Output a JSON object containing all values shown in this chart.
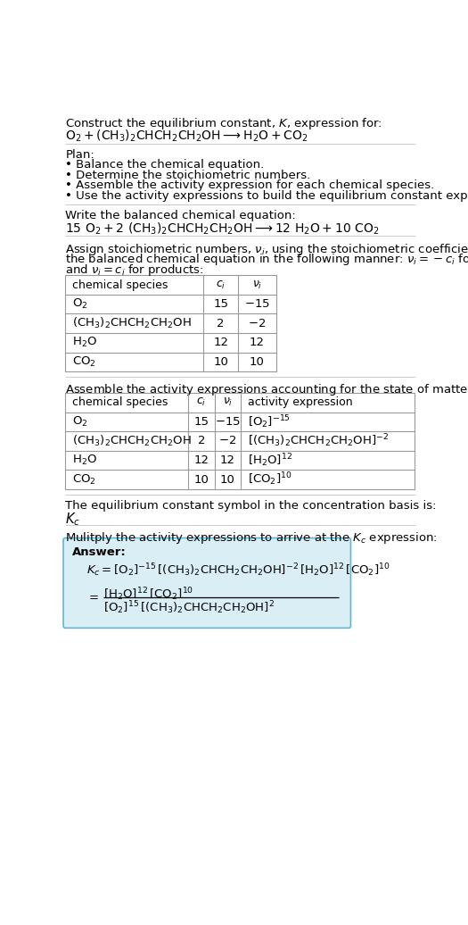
{
  "title_line1": "Construct the equilibrium constant, $K$, expression for:",
  "title_line2_plain": "O",
  "plan_header": "Plan:",
  "plan_bullets": [
    "• Balance the chemical equation.",
    "• Determine the stoichiometric numbers.",
    "• Assemble the activity expression for each chemical species.",
    "• Use the activity expressions to build the equilibrium constant expression."
  ],
  "balanced_eq_header": "Write the balanced chemical equation:",
  "stoich_intro_lines": [
    "Assign stoichiometric numbers, $\\nu_i$, using the stoichiometric coefficients, $c_i$, from",
    "the balanced chemical equation in the following manner: $\\nu_i = -c_i$ for reactants",
    "and $\\nu_i = c_i$ for products:"
  ],
  "table1_headers": [
    "chemical species",
    "$c_i$",
    "$\\nu_i$"
  ],
  "table1_rows": [
    [
      "$\\mathrm{O_2}$",
      "15",
      "$-15$"
    ],
    [
      "$\\mathrm{(CH_3)_2CHCH_2CH_2OH}$",
      "2",
      "$-2$"
    ],
    [
      "$\\mathrm{H_2O}$",
      "12",
      "12"
    ],
    [
      "$\\mathrm{CO_2}$",
      "10",
      "10"
    ]
  ],
  "activity_intro": "Assemble the activity expressions accounting for the state of matter and $\\nu_i$:",
  "table2_headers": [
    "chemical species",
    "$c_i$",
    "$\\nu_i$",
    "activity expression"
  ],
  "table2_rows": [
    [
      "$\\mathrm{O_2}$",
      "15",
      "$-15$",
      "$[\\mathrm{O_2}]^{-15}$"
    ],
    [
      "$\\mathrm{(CH_3)_2CHCH_2CH_2OH}$",
      "2",
      "$-2$",
      "$[(\\mathrm{CH_3})_2\\mathrm{CHCH_2CH_2OH}]^{-2}$"
    ],
    [
      "$\\mathrm{H_2O}$",
      "12",
      "12",
      "$[\\mathrm{H_2O}]^{12}$"
    ],
    [
      "$\\mathrm{CO_2}$",
      "10",
      "10",
      "$[\\mathrm{CO_2}]^{10}$"
    ]
  ],
  "kc_intro": "The equilibrium constant symbol in the concentration basis is:",
  "kc_symbol": "$K_c$",
  "multiply_intro": "Mulitply the activity expressions to arrive at the $K_c$ expression:",
  "answer_label": "Answer:",
  "answer_line1": "$K_c = [\\mathrm{O_2}]^{-15}\\, [(\\mathrm{CH_3})_2\\mathrm{CHCH_2CH_2OH}]^{-2}\\, [\\mathrm{H_2O}]^{12}\\, [\\mathrm{CO_2}]^{10}$",
  "answer_num": "$[\\mathrm{H_2O}]^{12}\\, [\\mathrm{CO_2}]^{10}$",
  "answer_den": "$[\\mathrm{O_2}]^{15}\\, [(\\mathrm{CH_3})_2\\mathrm{CHCH_2CH_2OH}]^{2}$",
  "bg_color": "#ffffff",
  "answer_box_color": "#daeef5",
  "answer_box_border": "#5bb8d4",
  "table_border_color": "#999999",
  "text_color": "#000000",
  "sep_color": "#cccccc",
  "font_size": 9.5
}
